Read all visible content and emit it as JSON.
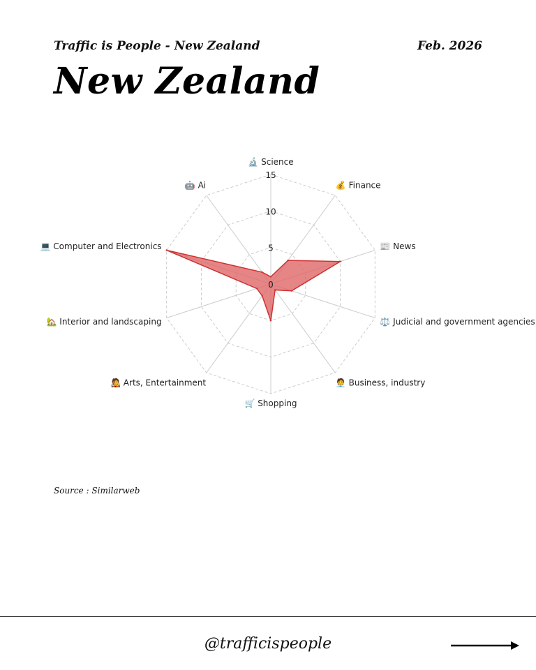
{
  "header": {
    "subtitle": "Traffic is People - New Zealand",
    "date": "Feb. 2026",
    "title": "New Zealand"
  },
  "source": "Source : Similarweb",
  "footer": {
    "handle": "@trafficispeople",
    "next_icon": "arrow-right-icon"
  },
  "chart_data": {
    "type": "radar",
    "categories": [
      "🔬 Science",
      "💰 Finance",
      "📰 News",
      "⚖️ Judicial and government agencies",
      "🧑‍💼 Business, industry",
      "🛒 Shopping",
      "🧑‍🎤 Arts, Entertainment",
      "🏡 Interior and landscaping",
      "💻 Computer and Electronics",
      "🤖 Ai"
    ],
    "values": [
      1,
      4,
      10,
      3,
      1,
      5,
      2,
      2,
      15,
      2
    ],
    "rlim": [
      0,
      15
    ],
    "ticks": [
      "0",
      "5",
      "10",
      "15"
    ],
    "tick_values": [
      0,
      5,
      10,
      15
    ],
    "grid": true,
    "fill_color": "#e06666",
    "line_color": "#cc3333"
  }
}
